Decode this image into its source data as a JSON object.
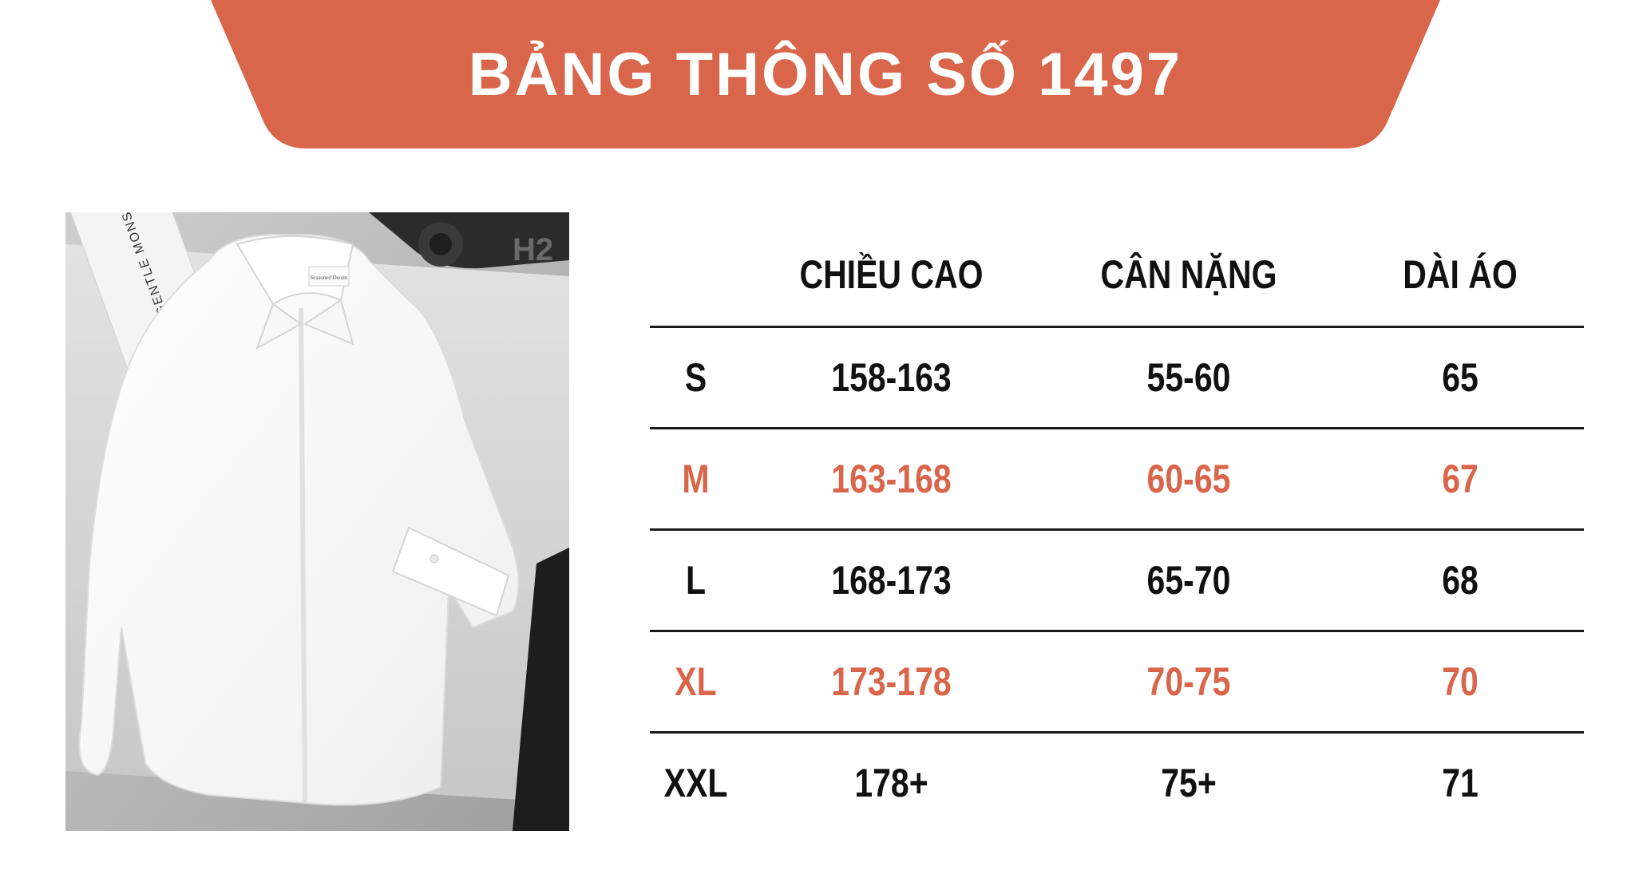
{
  "banner": {
    "title": "BẢNG THÔNG SỐ 1497",
    "color": "#d9654a"
  },
  "photo": {
    "tag_text": "Seasoned Denim",
    "box_text": "GENTLE MONSTE",
    "bg_text": "H2"
  },
  "table": {
    "headers": [
      "",
      "CHIỀU CAO",
      "CÂN NẶNG",
      "DÀI ÁO"
    ],
    "rows": [
      {
        "size": "S",
        "height": "158-163",
        "weight": "55-60",
        "length": "65",
        "highlight": false
      },
      {
        "size": "M",
        "height": "163-168",
        "weight": "60-65",
        "length": "67",
        "highlight": true
      },
      {
        "size": "L",
        "height": "168-173",
        "weight": "65-70",
        "length": "68",
        "highlight": false
      },
      {
        "size": "XL",
        "height": "173-178",
        "weight": "70-75",
        "length": "70",
        "highlight": true
      },
      {
        "size": "XXL",
        "height": "178+",
        "weight": "75+",
        "length": "71",
        "highlight": false
      }
    ],
    "highlight_color": "#d9654a"
  }
}
